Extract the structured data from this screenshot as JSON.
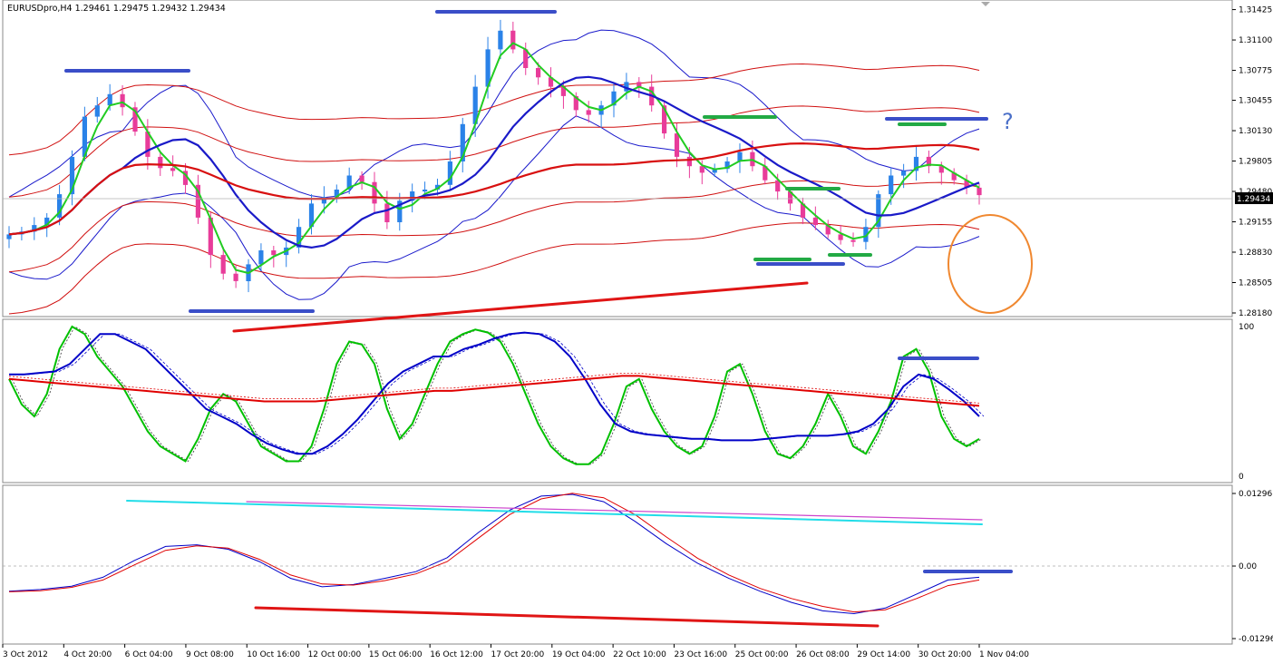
{
  "header": {
    "symbol": "EURUSDpro",
    "timeframe": "H4",
    "ohlc": "1.29461 1.29475 1.29432 1.29434",
    "title_full": "EURUSDpro,H4  1.29461 1.29475 1.29432 1.29434"
  },
  "annotations": {
    "question": "?"
  },
  "chart_data": [
    {
      "type": "candlestick",
      "pane": "price",
      "y_ticks": [
        "1.31425",
        "1.31100",
        "1.30775",
        "1.30455",
        "1.30130",
        "1.29805",
        "1.29480",
        "1.29155",
        "1.28830",
        "1.28505",
        "1.28180"
      ],
      "ylim": [
        1.2818,
        1.3145
      ],
      "current_price": "1.29434",
      "series": [
        {
          "name": "candles",
          "close_path": [
            1.2902,
            1.2905,
            1.2912,
            1.292,
            1.2945,
            1.2985,
            1.3028,
            1.304,
            1.3052,
            1.3038,
            1.3012,
            1.2985,
            1.2973,
            1.297,
            1.2955,
            1.292,
            1.288,
            1.286,
            1.2852,
            1.287,
            1.2885,
            1.288,
            1.2888,
            1.291,
            1.2935,
            1.2942,
            1.295,
            1.2965,
            1.2958,
            1.2935,
            1.2915,
            1.2938,
            1.2948,
            1.295,
            1.2955,
            1.298,
            1.302,
            1.306,
            1.31,
            1.312,
            1.31,
            1.308,
            1.307,
            1.306,
            1.305,
            1.3035,
            1.303,
            1.304,
            1.3055,
            1.3065,
            1.306,
            1.304,
            1.301,
            1.2985,
            1.2975,
            1.2968,
            1.2972,
            1.298,
            1.299,
            1.2975,
            1.296,
            1.2948,
            1.2935,
            1.292,
            1.2912,
            1.2902,
            1.2896,
            1.2894,
            1.291,
            1.2945,
            1.2965,
            1.297,
            1.2985,
            1.2975,
            1.2968,
            1.296,
            1.2952,
            1.2944
          ]
        }
      ]
    },
    {
      "type": "line",
      "pane": "stochastic",
      "y_ticks": [
        "100",
        "0"
      ],
      "ylim": [
        0,
        100
      ],
      "series": [
        {
          "name": "green-fast",
          "color": "#00c000",
          "values": [
            65,
            48,
            40,
            55,
            85,
            100,
            95,
            80,
            70,
            60,
            45,
            30,
            20,
            15,
            10,
            25,
            45,
            55,
            50,
            35,
            20,
            15,
            10,
            10,
            20,
            45,
            75,
            90,
            88,
            75,
            45,
            25,
            35,
            55,
            75,
            90,
            95,
            98,
            96,
            90,
            75,
            55,
            35,
            20,
            12,
            8,
            8,
            15,
            35,
            60,
            65,
            45,
            30,
            20,
            15,
            20,
            40,
            70,
            75,
            55,
            30,
            15,
            12,
            20,
            35,
            55,
            40,
            20,
            15,
            30,
            50,
            80,
            85,
            70,
            40,
            25,
            20,
            25
          ]
        },
        {
          "name": "blue-slow",
          "color": "#0000c8",
          "values": [
            68,
            68,
            69,
            70,
            75,
            85,
            95,
            95,
            90,
            85,
            75,
            65,
            55,
            45,
            40,
            35,
            28,
            22,
            18,
            15,
            15,
            20,
            28,
            38,
            50,
            62,
            70,
            75,
            80,
            80,
            85,
            88,
            92,
            95,
            96,
            95,
            90,
            80,
            65,
            48,
            35,
            30,
            28,
            27,
            26,
            25,
            25,
            24,
            24,
            24,
            25,
            26,
            27,
            27,
            27,
            28,
            30,
            35,
            45,
            60,
            68,
            65,
            58,
            50,
            40
          ]
        },
        {
          "name": "red-ma",
          "color": "#e00000",
          "values": [
            65,
            64,
            63,
            62,
            61,
            60,
            59,
            58,
            57,
            56,
            55,
            54,
            53,
            52,
            51,
            50,
            50,
            50,
            50,
            51,
            52,
            53,
            54,
            55,
            56,
            57,
            57,
            58,
            59,
            60,
            61,
            62,
            63,
            64,
            65,
            66,
            67,
            67,
            66,
            65,
            64,
            63,
            62,
            61,
            60,
            59,
            58,
            57,
            56,
            55,
            54,
            53,
            52,
            51,
            50,
            49,
            48,
            47
          ]
        }
      ]
    },
    {
      "type": "line",
      "pane": "macd",
      "y_ticks": [
        "0.012967",
        "0.00",
        "-0.01296"
      ],
      "ylim": [
        -0.01296,
        0.012967
      ],
      "series": [
        {
          "name": "blue-macd",
          "color": "#0000c8",
          "values": [
            -0.0045,
            -0.0042,
            -0.0036,
            -0.002,
            0.001,
            0.0035,
            0.0038,
            0.003,
            0.0008,
            -0.0022,
            -0.0037,
            -0.0033,
            -0.0022,
            -0.001,
            0.0015,
            0.006,
            0.01,
            0.0125,
            0.0128,
            0.0115,
            0.008,
            0.004,
            0.0005,
            -0.0022,
            -0.0045,
            -0.0065,
            -0.008,
            -0.0085,
            -0.0075,
            -0.005,
            -0.0025,
            -0.002
          ]
        },
        {
          "name": "red-signal",
          "color": "#e00000",
          "values": [
            -0.0046,
            -0.0044,
            -0.0038,
            -0.0025,
            0.0002,
            0.0028,
            0.0036,
            0.0032,
            0.0012,
            -0.0016,
            -0.0032,
            -0.0034,
            -0.0026,
            -0.0014,
            0.0008,
            0.005,
            0.0092,
            0.012,
            0.013,
            0.0122,
            0.0092,
            0.0052,
            0.0014,
            -0.0016,
            -0.004,
            -0.0058,
            -0.0072,
            -0.0082,
            -0.0078,
            -0.0058,
            -0.0035,
            -0.0025
          ]
        }
      ]
    }
  ],
  "x_ticks": [
    "3 Oct 2012",
    "4 Oct 20:00",
    "6 Oct 04:00",
    "9 Oct 08:00",
    "10 Oct 16:00",
    "12 Oct 00:00",
    "15 Oct 06:00",
    "16 Oct 12:00",
    "17 Oct 20:00",
    "19 Oct 04:00",
    "22 Oct 10:00",
    "23 Oct 16:00",
    "25 Oct 00:00",
    "26 Oct 08:00",
    "29 Oct 14:00",
    "30 Oct 20:00",
    "1 Nov 04:00"
  ],
  "colors": {
    "bull": "#2a82e8",
    "bear": "#e83c9a",
    "bollinger": "#1a1acb",
    "envelope": "#d01010",
    "ma_green": "#22cc22",
    "ma_blue": "#1a1ac8",
    "ma_red": "#d81010",
    "annotation_blue": "#3a4ec8",
    "annotation_green": "#22aa44",
    "annotation_red": "#e01515",
    "circle": "#f08830",
    "cyan": "#22dde8",
    "magenta": "#cc44cc"
  }
}
